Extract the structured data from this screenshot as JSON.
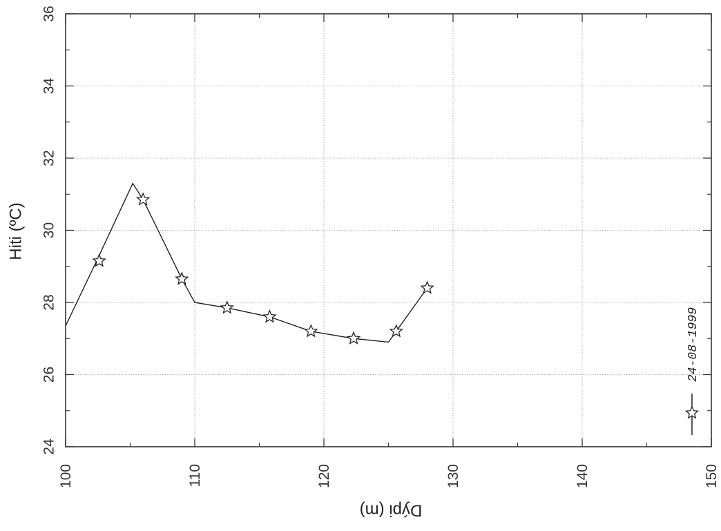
{
  "chart_data": {
    "type": "line",
    "xlabel": "Dýpi (m)",
    "ylabel": "Hiti (ºC)",
    "xlim": [
      100,
      150
    ],
    "ylim": [
      24,
      36
    ],
    "x_ticks": [
      "100",
      "110",
      "120",
      "130",
      "140",
      "150"
    ],
    "y_ticks": [
      "24",
      "26",
      "28",
      "30",
      "32",
      "34",
      "36"
    ],
    "grid": true,
    "legend_position": "bottom-right",
    "series": [
      {
        "name": "24-08-1999",
        "color": "#222222",
        "marker": "star",
        "line_x": [
          100,
          102.4,
          105.2,
          106.0,
          109.0,
          110.0,
          112.5,
          115.8,
          119.0,
          122.3,
          125.0,
          125.6,
          128.0
        ],
        "line_y": [
          27.35,
          29.15,
          31.3,
          30.85,
          28.65,
          28.0,
          27.85,
          27.6,
          27.2,
          27.0,
          26.9,
          27.2,
          28.4
        ],
        "marker_x": [
          102.6,
          106.0,
          109.0,
          112.5,
          115.8,
          119.0,
          122.3,
          125.6,
          128.0
        ],
        "marker_y": [
          29.15,
          30.85,
          28.65,
          27.85,
          27.6,
          27.2,
          27.0,
          27.2,
          28.4
        ]
      }
    ]
  }
}
